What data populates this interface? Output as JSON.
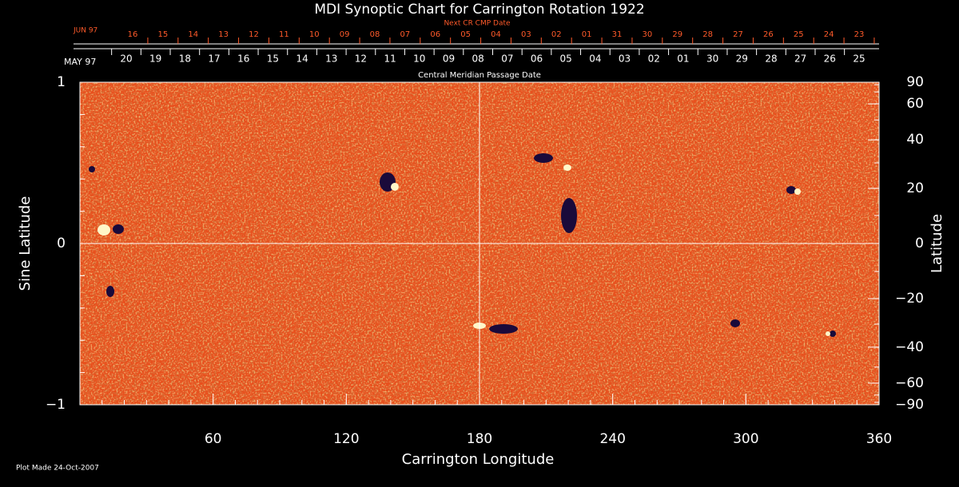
{
  "chart_data": {
    "type": "image",
    "title": "MDI Synoptic Chart for Carrington Rotation 1922",
    "top_axis_title": "Next CR CMP Date",
    "middle_axis_title": "Central Meridian Passage Date",
    "next_cmp_month": "JUN 97",
    "next_cmp_dates": [
      "16",
      "15",
      "14",
      "13",
      "12",
      "11",
      "10",
      "09",
      "08",
      "07",
      "06",
      "05",
      "04",
      "03",
      "02",
      "01",
      "31",
      "30",
      "29",
      "28",
      "27",
      "26",
      "25",
      "24",
      "23"
    ],
    "cmp_month": "MAY 97",
    "cmp_dates": [
      "20",
      "19",
      "18",
      "17",
      "16",
      "15",
      "14",
      "13",
      "12",
      "11",
      "10",
      "09",
      "08",
      "07",
      "06",
      "05",
      "04",
      "03",
      "02",
      "01",
      "30",
      "29",
      "28",
      "27",
      "26",
      "25"
    ],
    "xlabel": "Carrington Longitude",
    "ylabel": "Sine Latitude",
    "y2label": "Latitude",
    "xlim": [
      0,
      360
    ],
    "xticks": [
      60,
      120,
      180,
      240,
      300,
      360
    ],
    "ylim": [
      -1,
      1
    ],
    "yticks": [
      {
        "value": -1,
        "label": "−1"
      },
      0,
      1
    ],
    "y2lim": [
      -90,
      90
    ],
    "y2scale": "sine",
    "y2ticks": [
      90,
      60,
      40,
      20,
      0,
      {
        "value": -20,
        "label": "−20"
      },
      {
        "value": -40,
        "label": "−40"
      },
      {
        "value": -60,
        "label": "−60"
      },
      {
        "value": -90,
        "label": "−90"
      }
    ],
    "guides": {
      "x": 180,
      "y": 0
    },
    "footer": "Plot Made 24-Oct-2007"
  }
}
